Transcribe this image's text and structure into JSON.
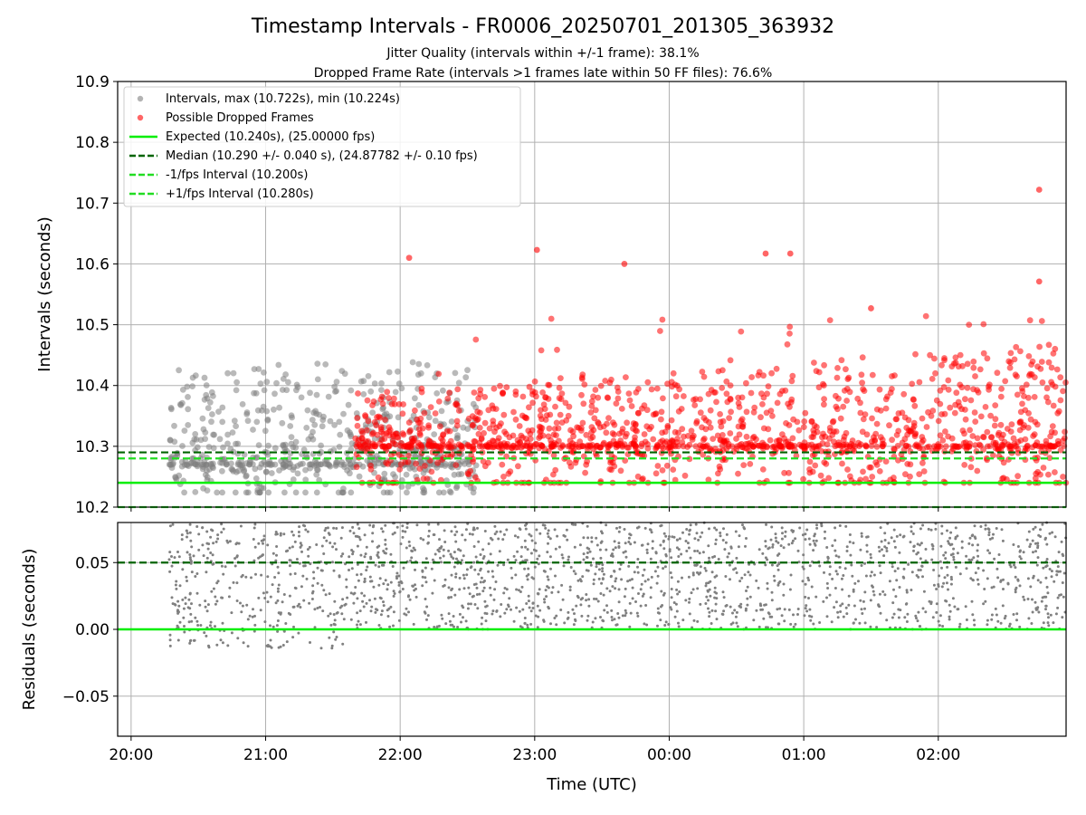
{
  "chart_data": {
    "type": "scatter",
    "title": "Timestamp Intervals - FR0006_20250701_201305_363932",
    "subtitles": [
      "Jitter Quality (intervals within +/-1 frame): 38.1%",
      "Dropped Frame Rate (intervals >1 frames late within 50 FF files): 76.6%"
    ],
    "top_panel": {
      "ylabel": "Intervals (seconds)",
      "ylim": [
        10.2,
        10.9
      ],
      "yticks": [
        "10.2",
        "10.3",
        "10.4",
        "10.5",
        "10.6",
        "10.7",
        "10.8",
        "10.9"
      ],
      "grid": true,
      "legend_position": "upper-left",
      "legend": [
        "Intervals, max (10.722s), min (10.224s)",
        "Possible Dropped Frames",
        "Expected (10.240s), (25.00000 fps)",
        "Median (10.290 +/- 0.040 s), (24.87782 +/- 0.10 fps)",
        "-1/fps Interval (10.200s)",
        "+1/fps Interval (10.280s)"
      ],
      "reference_lines": {
        "expected": 10.24,
        "median": 10.29,
        "minus_one_fps": 10.2,
        "plus_one_fps": 10.28
      },
      "series": [
        {
          "name": "Intervals",
          "color": "#808080",
          "time_range": [
            "20:17",
            "22:34"
          ],
          "y_range": [
            10.224,
            10.44
          ],
          "typical_center": 10.27
        },
        {
          "name": "Possible Dropped Frames",
          "color": "#ff0000",
          "time_range": [
            "21:40",
            "02:57"
          ],
          "y_range": [
            10.24,
            10.722
          ],
          "typical_center": 10.3,
          "highlighted_points": [
            {
              "time": "22:04",
              "y": 10.61
            },
            {
              "time": "23:01",
              "y": 10.623
            },
            {
              "time": "23:40",
              "y": 10.6
            },
            {
              "time": "00:43",
              "y": 10.617
            },
            {
              "time": "00:54",
              "y": 10.617
            },
            {
              "time": "01:30",
              "y": 10.527
            },
            {
              "time": "02:45",
              "y": 10.722
            },
            {
              "time": "02:45",
              "y": 10.571
            }
          ]
        }
      ]
    },
    "bottom_panel": {
      "ylabel": "Residuals (seconds)",
      "ylim": [
        -0.08,
        0.08
      ],
      "yticks": [
        "−0.05",
        "0.00",
        "0.05"
      ],
      "grid": true,
      "reference_lines": {
        "zero": 0.0,
        "median_offset": 0.05
      },
      "series": [
        {
          "name": "Residuals",
          "color": "#808080",
          "time_range": [
            "20:17",
            "02:57"
          ],
          "y_range": [
            -0.015,
            0.08
          ]
        }
      ]
    },
    "x_axis": {
      "xlabel": "Time (UTC)",
      "xlim": [
        "19:54",
        "02:57"
      ],
      "xticks": [
        "20:00",
        "21:00",
        "22:00",
        "23:00",
        "00:00",
        "01:00",
        "02:00"
      ]
    },
    "colors": {
      "expected": "#00ee00",
      "median": "#006400",
      "fps_bounds": "#22dd22",
      "grid": "#b0b0b0"
    }
  }
}
